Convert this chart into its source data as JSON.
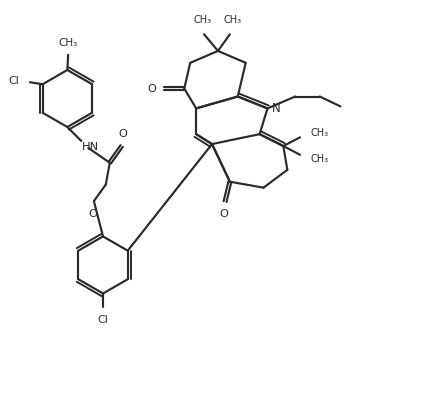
{
  "bg": "#ffffff",
  "lc": "#2a2a2a",
  "figsize": [
    4.28,
    4.11
  ],
  "dpi": 100,
  "xlim": [
    0,
    10.7
  ],
  "ylim": [
    0,
    10.3
  ]
}
